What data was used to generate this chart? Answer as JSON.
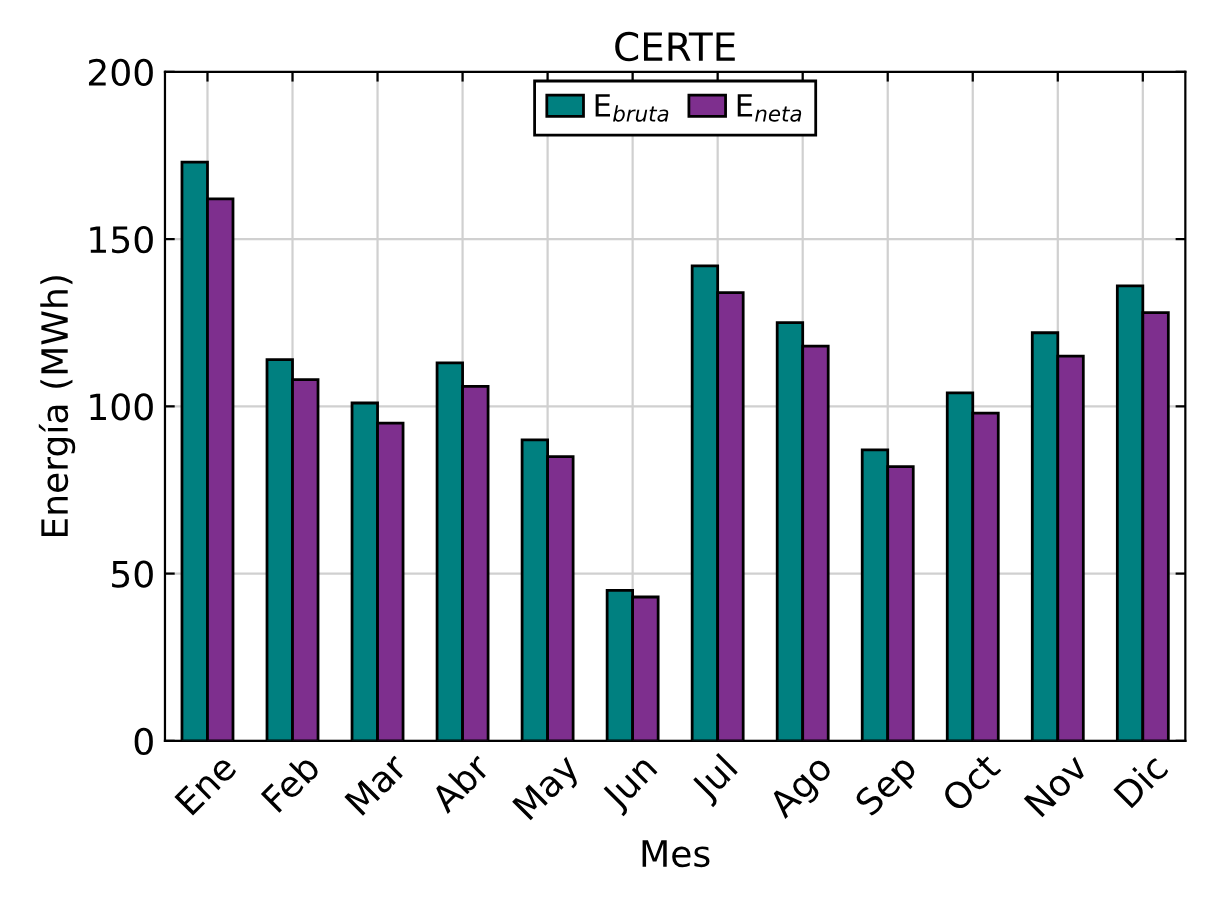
{
  "chart_data": {
    "type": "bar",
    "title": "CERTE",
    "xlabel": "Mes",
    "ylabel": "Energía (MWh)",
    "categories": [
      "Ene",
      "Feb",
      "Mar",
      "Abr",
      "May",
      "Jun",
      "Jul",
      "Ago",
      "Sep",
      "Oct",
      "Nov",
      "Dic"
    ],
    "series": [
      {
        "name": "E$_{bruta}$",
        "color": "#008080",
        "values": [
          173,
          114,
          101,
          113,
          90,
          45,
          142,
          125,
          87,
          104,
          122,
          136
        ]
      },
      {
        "name": "E$_{neta}$",
        "color": "#7e2f8e",
        "values": [
          162,
          108,
          95,
          106,
          85,
          43,
          134,
          118,
          82,
          98,
          115,
          128
        ]
      }
    ],
    "ylim": [
      0,
      200
    ],
    "yticks": [
      0,
      50,
      100,
      150,
      200
    ],
    "grid": true,
    "legend": "top"
  }
}
